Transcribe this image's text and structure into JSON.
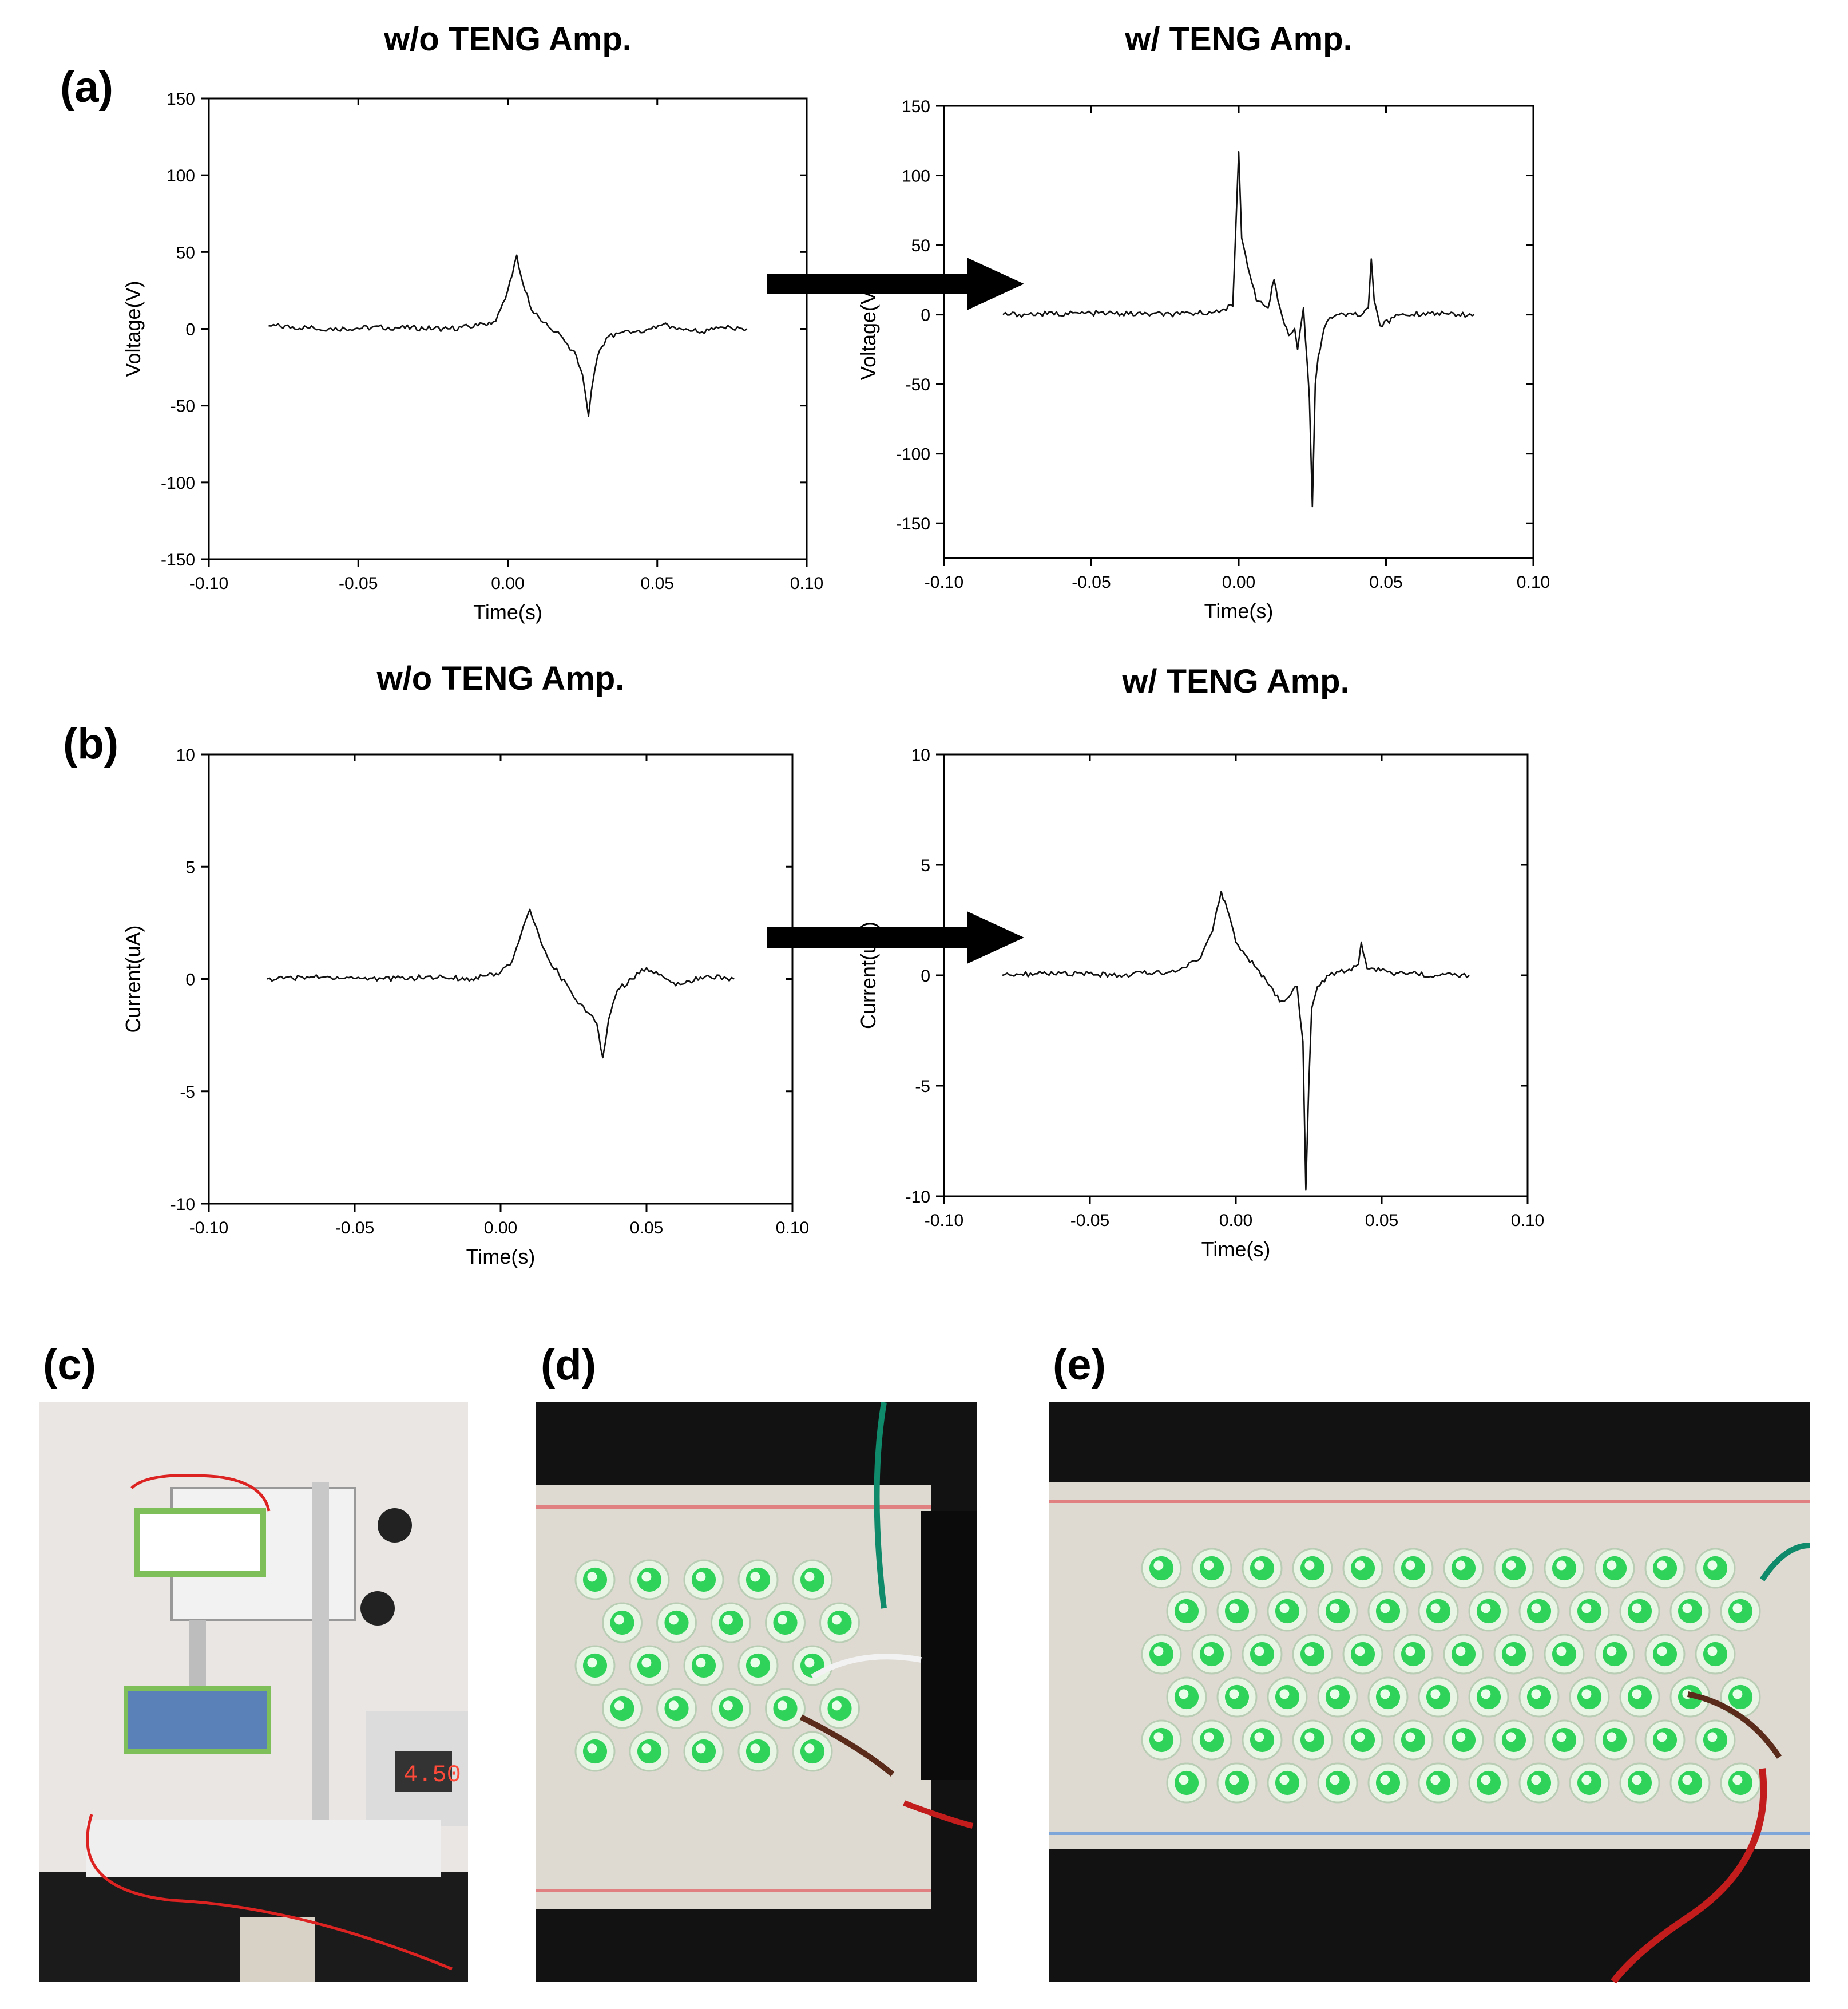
{
  "panel_labels": {
    "a": "(a)",
    "b": "(b)",
    "c": "(c)",
    "d": "(d)",
    "e": "(e)"
  },
  "chart_data": [
    {
      "type": "line",
      "panel": "(a)",
      "title": "w/o TENG Amp.",
      "xlabel": "Time(s)",
      "ylabel": "Voltage(V)",
      "xlim": [
        -0.1,
        0.1
      ],
      "ylim": [
        -150,
        150
      ],
      "xticks": [
        "-0.10",
        "-0.05",
        "0.00",
        "0.05",
        "0.10"
      ],
      "yticks": [
        "150",
        "100",
        "50",
        "0",
        "-50",
        "-100",
        "-150"
      ],
      "grid": false,
      "series": [
        {
          "x": [
            -0.08,
            -0.06,
            -0.04,
            -0.02,
            -0.01,
            -0.004,
            0.0,
            0.003,
            0.005,
            0.008,
            0.012,
            0.016,
            0.02,
            0.023,
            0.025,
            0.027,
            0.028,
            0.03,
            0.033,
            0.037,
            0.042,
            0.048,
            0.052,
            0.058,
            0.065,
            0.072,
            0.08
          ],
          "y": [
            2,
            0,
            1,
            0,
            2,
            5,
            25,
            48,
            30,
            12,
            4,
            -2,
            -10,
            -18,
            -30,
            -57,
            -40,
            -18,
            -6,
            -3,
            -2,
            0,
            3,
            0,
            -2,
            1,
            0
          ]
        }
      ]
    },
    {
      "type": "line",
      "panel": "(a)",
      "title": "w/ TENG Amp.",
      "xlabel": "Time(s)",
      "ylabel": "Voltage(V)",
      "xlim": [
        -0.1,
        0.1
      ],
      "ylim": [
        -175,
        150
      ],
      "xticks": [
        "-0.10",
        "-0.05",
        "0.00",
        "0.05",
        "0.10"
      ],
      "yticks": [
        "150",
        "100",
        "50",
        "0",
        "-50",
        "-100",
        "-150"
      ],
      "grid": false,
      "series": [
        {
          "x": [
            -0.08,
            -0.05,
            -0.02,
            -0.01,
            -0.005,
            -0.002,
            0.0,
            0.001,
            0.003,
            0.006,
            0.01,
            0.012,
            0.014,
            0.017,
            0.019,
            0.02,
            0.022,
            0.024,
            0.025,
            0.026,
            0.027,
            0.029,
            0.031,
            0.034,
            0.038,
            0.042,
            0.044,
            0.045,
            0.046,
            0.048,
            0.055,
            0.065,
            0.08
          ],
          "y": [
            0,
            1,
            0,
            2,
            4,
            6,
            117,
            55,
            35,
            10,
            5,
            25,
            5,
            -15,
            -10,
            -25,
            5,
            -60,
            -138,
            -50,
            -30,
            -10,
            -2,
            0,
            1,
            0,
            5,
            40,
            10,
            -8,
            0,
            1,
            0
          ]
        }
      ]
    },
    {
      "type": "line",
      "panel": "(b)",
      "title": "w/o TENG Amp.",
      "xlabel": "Time(s)",
      "ylabel": "Current(uA)",
      "xlim": [
        -0.1,
        0.1
      ],
      "ylim": [
        -10,
        10
      ],
      "xticks": [
        "-0.10",
        "-0.05",
        "0.00",
        "0.05",
        "0.10"
      ],
      "yticks": [
        "10",
        "5",
        "0",
        "-5",
        "-10"
      ],
      "grid": false,
      "series": [
        {
          "x": [
            -0.08,
            -0.06,
            -0.04,
            -0.02,
            -0.01,
            0.0,
            0.004,
            0.007,
            0.01,
            0.013,
            0.016,
            0.02,
            0.025,
            0.03,
            0.033,
            0.035,
            0.037,
            0.04,
            0.045,
            0.05,
            0.055,
            0.06,
            0.07,
            0.08
          ],
          "y": [
            0,
            0.1,
            0,
            0.1,
            0,
            0.3,
            0.8,
            2.0,
            3.1,
            2.0,
            1.0,
            0.2,
            -0.8,
            -1.5,
            -2.0,
            -3.5,
            -1.8,
            -0.5,
            0,
            0.5,
            0.2,
            -0.3,
            0.1,
            0
          ]
        }
      ]
    },
    {
      "type": "line",
      "panel": "(b)",
      "title": "w/ TENG Amp.",
      "xlabel": "Time(s)",
      "ylabel": "Current(uA)",
      "xlim": [
        -0.1,
        0.1
      ],
      "ylim": [
        -10,
        10
      ],
      "xticks": [
        "-0.10",
        "-0.05",
        "0.00",
        "0.05",
        "0.10"
      ],
      "yticks": [
        "10",
        "5",
        "0",
        "-5",
        "-10"
      ],
      "grid": false,
      "series": [
        {
          "x": [
            -0.08,
            -0.06,
            -0.04,
            -0.02,
            -0.012,
            -0.008,
            -0.005,
            -0.003,
            0.0,
            0.004,
            0.008,
            0.012,
            0.015,
            0.018,
            0.021,
            0.023,
            0.024,
            0.025,
            0.026,
            0.028,
            0.032,
            0.038,
            0.042,
            0.043,
            0.045,
            0.055,
            0.07,
            0.08
          ],
          "y": [
            0,
            0.1,
            0,
            0.2,
            0.8,
            2.0,
            3.8,
            3.0,
            1.5,
            0.8,
            0.2,
            -0.5,
            -1.2,
            -1.0,
            -0.5,
            -3.0,
            -9.7,
            -5.0,
            -1.5,
            -0.5,
            0,
            0.2,
            0.5,
            1.5,
            0.3,
            0.1,
            0,
            0
          ]
        }
      ]
    }
  ],
  "photos": {
    "c": {
      "description_icon": "teng-test-rig-photo"
    },
    "d": {
      "description_icon": "led-breadboard-photo"
    },
    "e": {
      "description_icon": "led-breadboard-photo"
    }
  }
}
